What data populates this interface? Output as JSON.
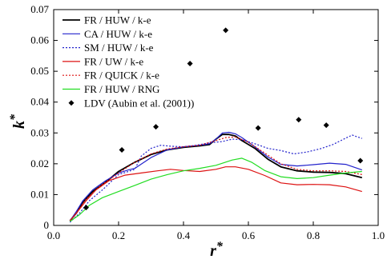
{
  "chart_data": {
    "type": "line",
    "xlabel": "r",
    "xlabel_sup": "*",
    "ylabel": "k",
    "ylabel_sup": "*",
    "xlim": [
      0.0,
      1.0
    ],
    "ylim": [
      0.0,
      0.07
    ],
    "xticks": [
      "0.0",
      "0.2",
      "0.4",
      "0.6",
      "0.8",
      "1.0"
    ],
    "yticks": [
      "0",
      "0.01",
      "0.02",
      "0.03",
      "0.04",
      "0.05",
      "0.06",
      "0.07"
    ],
    "grid": false,
    "legend_position": "top-left",
    "series": [
      {
        "name": "FR / HUW / k-e",
        "color": "#000000",
        "dash": "solid",
        "points": [
          [
            0.05,
            0.0015
          ],
          [
            0.07,
            0.004
          ],
          [
            0.09,
            0.0075
          ],
          [
            0.12,
            0.011
          ],
          [
            0.16,
            0.014
          ],
          [
            0.2,
            0.0175
          ],
          [
            0.25,
            0.0205
          ],
          [
            0.3,
            0.023
          ],
          [
            0.35,
            0.0245
          ],
          [
            0.4,
            0.0253
          ],
          [
            0.45,
            0.0258
          ],
          [
            0.48,
            0.0262
          ],
          [
            0.5,
            0.028
          ],
          [
            0.52,
            0.0295
          ],
          [
            0.54,
            0.0295
          ],
          [
            0.56,
            0.029
          ],
          [
            0.58,
            0.0275
          ],
          [
            0.62,
            0.025
          ],
          [
            0.66,
            0.0215
          ],
          [
            0.7,
            0.019
          ],
          [
            0.75,
            0.0177
          ],
          [
            0.8,
            0.0173
          ],
          [
            0.85,
            0.0172
          ],
          [
            0.9,
            0.0168
          ],
          [
            0.95,
            0.0155
          ]
        ]
      },
      {
        "name": "CA / HUW / k-e",
        "color": "#2222cc",
        "dash": "solid",
        "points": [
          [
            0.05,
            0.0015
          ],
          [
            0.07,
            0.0045
          ],
          [
            0.09,
            0.008
          ],
          [
            0.12,
            0.0115
          ],
          [
            0.16,
            0.0145
          ],
          [
            0.2,
            0.017
          ],
          [
            0.23,
            0.018
          ],
          [
            0.25,
            0.0185
          ],
          [
            0.3,
            0.022
          ],
          [
            0.35,
            0.0245
          ],
          [
            0.4,
            0.0255
          ],
          [
            0.45,
            0.026
          ],
          [
            0.48,
            0.0265
          ],
          [
            0.5,
            0.028
          ],
          [
            0.52,
            0.03
          ],
          [
            0.54,
            0.0302
          ],
          [
            0.56,
            0.0297
          ],
          [
            0.58,
            0.0285
          ],
          [
            0.62,
            0.0255
          ],
          [
            0.66,
            0.0222
          ],
          [
            0.7,
            0.0198
          ],
          [
            0.75,
            0.0193
          ],
          [
            0.8,
            0.0197
          ],
          [
            0.85,
            0.0202
          ],
          [
            0.9,
            0.0198
          ],
          [
            0.95,
            0.018
          ]
        ]
      },
      {
        "name": "SM / HUW / k-e",
        "color": "#2222cc",
        "dash": "dotted",
        "points": [
          [
            0.05,
            0.001
          ],
          [
            0.08,
            0.004
          ],
          [
            0.11,
            0.008
          ],
          [
            0.15,
            0.0115
          ],
          [
            0.2,
            0.0165
          ],
          [
            0.23,
            0.0175
          ],
          [
            0.25,
            0.0182
          ],
          [
            0.27,
            0.0225
          ],
          [
            0.3,
            0.025
          ],
          [
            0.33,
            0.026
          ],
          [
            0.36,
            0.0257
          ],
          [
            0.4,
            0.0255
          ],
          [
            0.44,
            0.026
          ],
          [
            0.48,
            0.0268
          ],
          [
            0.52,
            0.0272
          ],
          [
            0.55,
            0.028
          ],
          [
            0.58,
            0.0278
          ],
          [
            0.62,
            0.0265
          ],
          [
            0.66,
            0.025
          ],
          [
            0.7,
            0.0243
          ],
          [
            0.74,
            0.0232
          ],
          [
            0.78,
            0.0238
          ],
          [
            0.82,
            0.0248
          ],
          [
            0.86,
            0.0262
          ],
          [
            0.9,
            0.0283
          ],
          [
            0.92,
            0.0293
          ],
          [
            0.95,
            0.0282
          ]
        ]
      },
      {
        "name": "FR / UW / k-e",
        "color": "#dd1111",
        "dash": "solid",
        "points": [
          [
            0.05,
            0.0015
          ],
          [
            0.07,
            0.004
          ],
          [
            0.1,
            0.008
          ],
          [
            0.13,
            0.0115
          ],
          [
            0.17,
            0.0145
          ],
          [
            0.22,
            0.0163
          ],
          [
            0.27,
            0.017
          ],
          [
            0.32,
            0.0177
          ],
          [
            0.36,
            0.0182
          ],
          [
            0.4,
            0.0178
          ],
          [
            0.45,
            0.0175
          ],
          [
            0.5,
            0.0182
          ],
          [
            0.53,
            0.019
          ],
          [
            0.56,
            0.019
          ],
          [
            0.6,
            0.0182
          ],
          [
            0.65,
            0.0162
          ],
          [
            0.7,
            0.0138
          ],
          [
            0.75,
            0.0132
          ],
          [
            0.8,
            0.0133
          ],
          [
            0.85,
            0.0132
          ],
          [
            0.9,
            0.0125
          ],
          [
            0.95,
            0.011
          ]
        ]
      },
      {
        "name": "FR / QUICK / k-e",
        "color": "#dd1111",
        "dash": "dotted",
        "points": [
          [
            0.05,
            0.0015
          ],
          [
            0.07,
            0.004
          ],
          [
            0.1,
            0.0085
          ],
          [
            0.14,
            0.0125
          ],
          [
            0.2,
            0.017
          ],
          [
            0.25,
            0.0205
          ],
          [
            0.3,
            0.0232
          ],
          [
            0.35,
            0.0248
          ],
          [
            0.4,
            0.0255
          ],
          [
            0.45,
            0.026
          ],
          [
            0.5,
            0.0275
          ],
          [
            0.53,
            0.0285
          ],
          [
            0.56,
            0.0287
          ],
          [
            0.6,
            0.027
          ],
          [
            0.65,
            0.0235
          ],
          [
            0.7,
            0.02
          ],
          [
            0.75,
            0.0182
          ],
          [
            0.8,
            0.0177
          ],
          [
            0.85,
            0.0177
          ],
          [
            0.9,
            0.0175
          ],
          [
            0.95,
            0.0165
          ]
        ]
      },
      {
        "name": "FR / HUW / RNG",
        "color": "#22dd22",
        "dash": "solid",
        "points": [
          [
            0.05,
            0.0013
          ],
          [
            0.08,
            0.0035
          ],
          [
            0.11,
            0.0065
          ],
          [
            0.15,
            0.009
          ],
          [
            0.2,
            0.011
          ],
          [
            0.25,
            0.013
          ],
          [
            0.3,
            0.015
          ],
          [
            0.35,
            0.0165
          ],
          [
            0.4,
            0.0177
          ],
          [
            0.45,
            0.0185
          ],
          [
            0.5,
            0.0195
          ],
          [
            0.55,
            0.0212
          ],
          [
            0.58,
            0.0218
          ],
          [
            0.61,
            0.0205
          ],
          [
            0.65,
            0.0178
          ],
          [
            0.7,
            0.0158
          ],
          [
            0.75,
            0.0152
          ],
          [
            0.8,
            0.0155
          ],
          [
            0.85,
            0.0163
          ],
          [
            0.9,
            0.017
          ],
          [
            0.95,
            0.0175
          ]
        ]
      }
    ],
    "scatter": {
      "name": "LDV (Aubin et al. (2001))",
      "color": "#000000",
      "points": [
        [
          0.1,
          0.0058
        ],
        [
          0.21,
          0.0245
        ],
        [
          0.315,
          0.032
        ],
        [
          0.42,
          0.0525
        ],
        [
          0.53,
          0.0633
        ],
        [
          0.63,
          0.0316
        ],
        [
          0.755,
          0.0343
        ],
        [
          0.84,
          0.0325
        ],
        [
          0.945,
          0.021
        ]
      ]
    }
  }
}
